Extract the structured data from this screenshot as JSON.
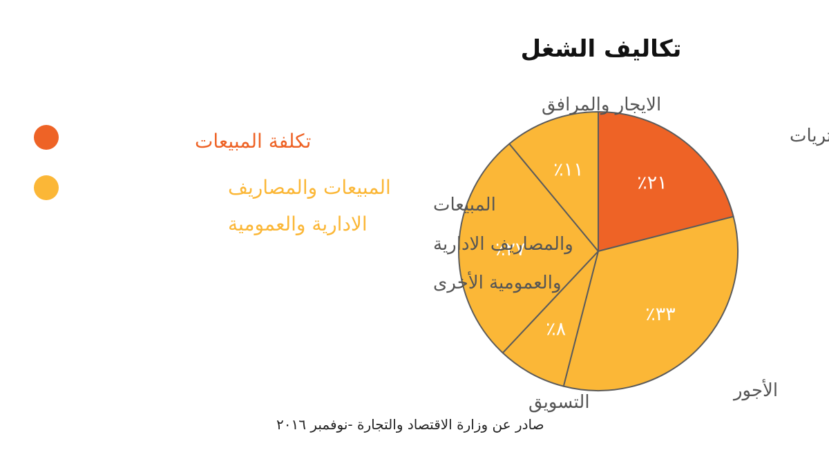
{
  "chart_data": {
    "type": "pie",
    "title": "تكاليف الشغل",
    "source": "صادر عن وزارة الاقتصاد والتجارة -نوفمبر ٢٠١٦",
    "colors": {
      "cost_of_sales": "#EE6326",
      "sga": "#FBB737",
      "outline": "#5B5B5B"
    },
    "legend": {
      "position": "left",
      "items": [
        {
          "label": "تكلفة المبيعات",
          "color": "#EE6326"
        },
        {
          "label": "المبيعات والمصاريف الادارية والعمومية",
          "color": "#FBB737"
        }
      ]
    },
    "series": [
      {
        "category": "المشتريات",
        "value": 21,
        "value_label": "٪٢١",
        "color": "#EE6326"
      },
      {
        "category": "الأجور",
        "value": 33,
        "value_label": "٪٣٣",
        "color": "#FBB737"
      },
      {
        "category": "التسويق",
        "value": 8,
        "value_label": "٪٨",
        "color": "#FBB737"
      },
      {
        "category": "المبيعات والمصاريف الادارية والعمومية الأخرى",
        "value": 27,
        "value_label": "٪٢٧",
        "color": "#FBB737"
      },
      {
        "category": "الايجار والمرافق",
        "value": 11,
        "value_label": "٪١١",
        "color": "#FBB737"
      }
    ]
  }
}
